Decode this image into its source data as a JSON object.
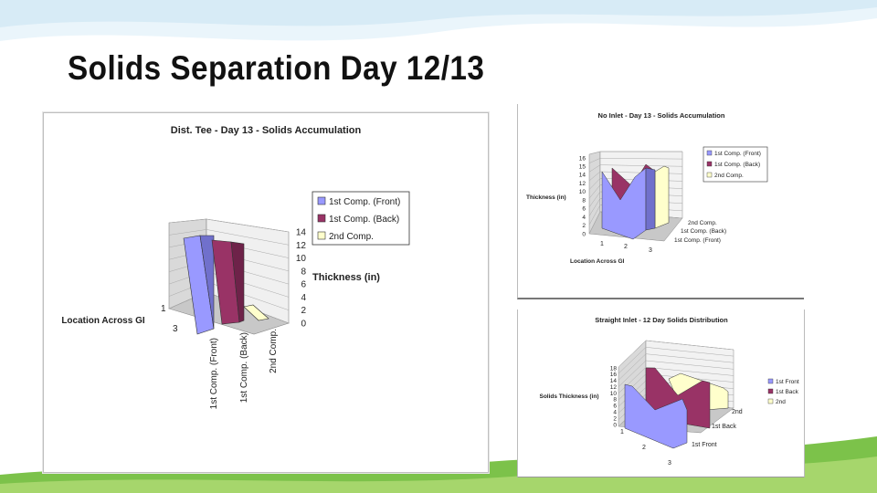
{
  "slide": {
    "title": "Solids Separation Day 12/13"
  },
  "colors": {
    "front": "#9999ff",
    "back": "#993366",
    "second": "#ffffcc",
    "wave_green": "#6fbf3f",
    "wave_blue": "#d8ecf7"
  },
  "chart_data": [
    {
      "type": "bar",
      "title": "Dist. Tee - Day 13 - Solids Accumulation",
      "series": [
        {
          "name": "1st Comp. (Front)",
          "values": [
            14
          ]
        },
        {
          "name": "1st Comp. (Back)",
          "values": [
            13
          ]
        },
        {
          "name": "2nd Comp.",
          "values": [
            1
          ]
        }
      ],
      "zlabel": "Thickness (in)",
      "ylabel": "Location Across GI",
      "depth_ticks": [
        "1",
        "3"
      ],
      "x_ticks": [
        "1st Comp. (Front)",
        "1st Comp. (Back)",
        "2nd Comp."
      ],
      "z_ticks": [
        "0",
        "2",
        "4",
        "6",
        "8",
        "10",
        "12",
        "14"
      ],
      "zlim": [
        0,
        14
      ],
      "legend": "top-right"
    },
    {
      "type": "area",
      "title": "No Inlet - Day 13 - Solids Accumulation",
      "categories": [
        "1",
        "2",
        "3"
      ],
      "series": [
        {
          "name": "1st Comp. (Front)",
          "values": [
            14,
            6,
            14
          ]
        },
        {
          "name": "1st Comp. (Back)",
          "values": [
            12,
            8,
            12
          ]
        },
        {
          "name": "2nd Comp.",
          "values": [
            10,
            9,
            10
          ]
        }
      ],
      "zlabel": "Thickness (in)",
      "xlabel": "Location Across GI",
      "series_axis_ticks": [
        "2nd Comp.",
        "1st Comp. (Back)",
        "1st Comp. (Front)"
      ],
      "z_ticks": [
        "0",
        "2",
        "4",
        "6",
        "8",
        "10",
        "12",
        "14",
        "15",
        "16"
      ],
      "legend": "top-right"
    },
    {
      "type": "area",
      "title": "Straight Inlet - 12 Day Solids Distribution",
      "categories": [
        "1",
        "2",
        "3"
      ],
      "series": [
        {
          "name": "1st Front",
          "values": [
            10,
            4,
            10
          ]
        },
        {
          "name": "1st Back",
          "values": [
            12,
            6,
            12
          ]
        },
        {
          "name": "2nd",
          "values": [
            5,
            3,
            5
          ]
        }
      ],
      "zlabel": "Solids Thickness (in)",
      "series_axis_ticks": [
        "2nd",
        "1st Back",
        "1st Front"
      ],
      "z_ticks": [
        "0",
        "2",
        "4",
        "6",
        "8",
        "10",
        "12",
        "14",
        "16",
        "18"
      ],
      "legend": "right"
    }
  ]
}
